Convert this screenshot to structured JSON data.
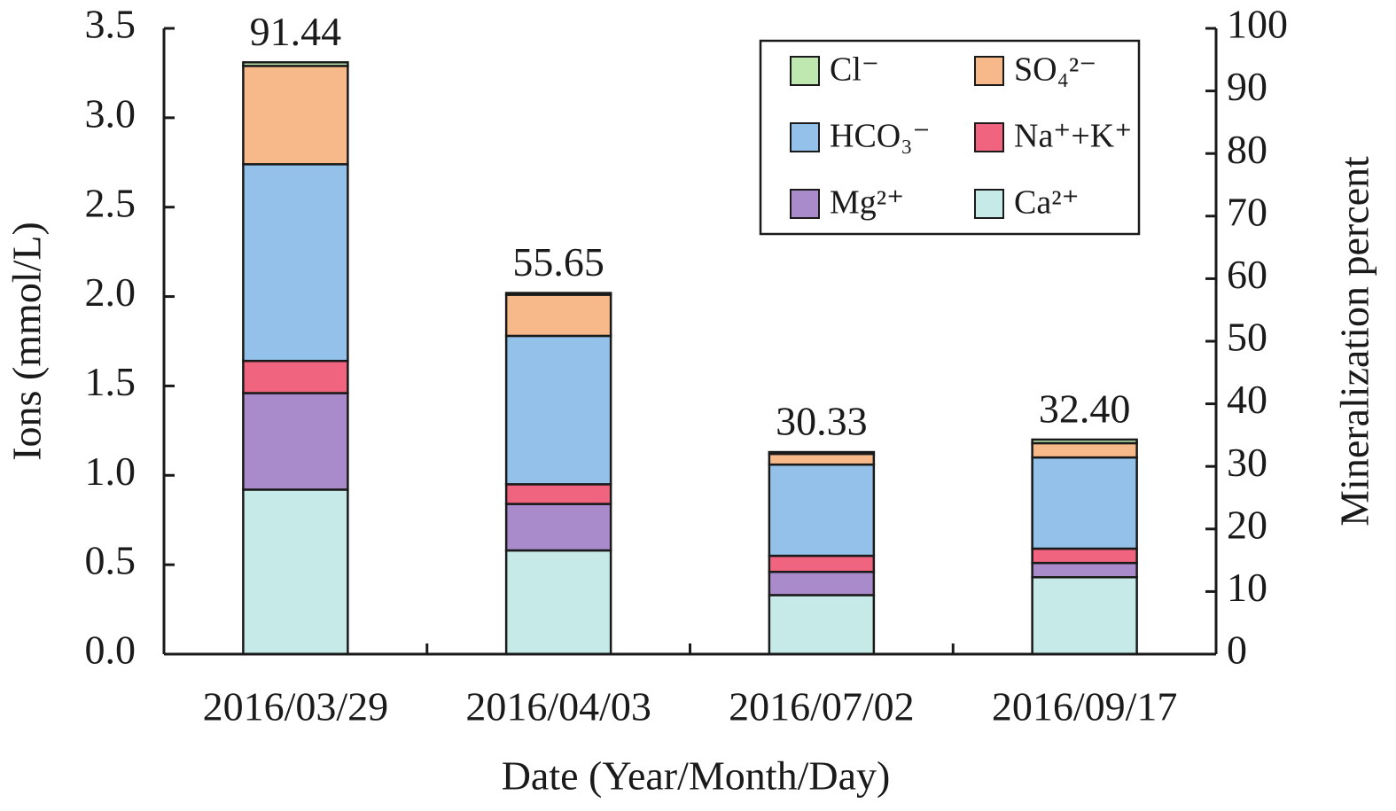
{
  "chart_data": {
    "type": "bar",
    "stacked": true,
    "xlabel": "Date (Year/Month/Day)",
    "ylabel": "Ions (mmol/L)",
    "y2label": "Mineralization percent",
    "categories": [
      "2016/03/29",
      "2016/04/03",
      "2016/07/02",
      "2016/09/17"
    ],
    "series": [
      {
        "name": "Ca²⁺",
        "color": "#c5eae8",
        "values": [
          0.92,
          0.58,
          0.33,
          0.43
        ]
      },
      {
        "name": "Mg²⁺",
        "color": "#a98bcc",
        "values": [
          0.54,
          0.26,
          0.13,
          0.08
        ]
      },
      {
        "name": "Na⁺+K⁺",
        "color": "#f06480",
        "values": [
          0.18,
          0.11,
          0.09,
          0.08
        ]
      },
      {
        "name": "HCO₃⁻",
        "color": "#93c1e9",
        "values": [
          1.1,
          0.83,
          0.51,
          0.51
        ]
      },
      {
        "name": "SO₄²⁻",
        "color": "#f8b98a",
        "values": [
          0.55,
          0.23,
          0.06,
          0.08
        ]
      },
      {
        "name": "Cl⁻",
        "color": "#bfe8b0",
        "values": [
          0.02,
          0.01,
          0.01,
          0.02
        ]
      }
    ],
    "mineralization": {
      "axis": "y2",
      "values": [
        91.44,
        55.65,
        30.33,
        32.4
      ],
      "value_labels": [
        "91.44",
        "55.65",
        "30.33",
        "32.40"
      ]
    },
    "ylim": [
      0,
      3.5
    ],
    "yticks": [
      {
        "value": 0,
        "label": "0.0"
      },
      0.5,
      {
        "value": 1,
        "label": "1.0"
      },
      1.5,
      {
        "value": 2,
        "label": "2.0"
      },
      2.5,
      {
        "value": 3,
        "label": "3.0"
      },
      3.5
    ],
    "y2lim": [
      0,
      100
    ],
    "y2ticks": [
      0,
      10,
      20,
      30,
      40,
      50,
      60,
      70,
      80,
      90,
      100
    ],
    "legend": "upper right"
  }
}
